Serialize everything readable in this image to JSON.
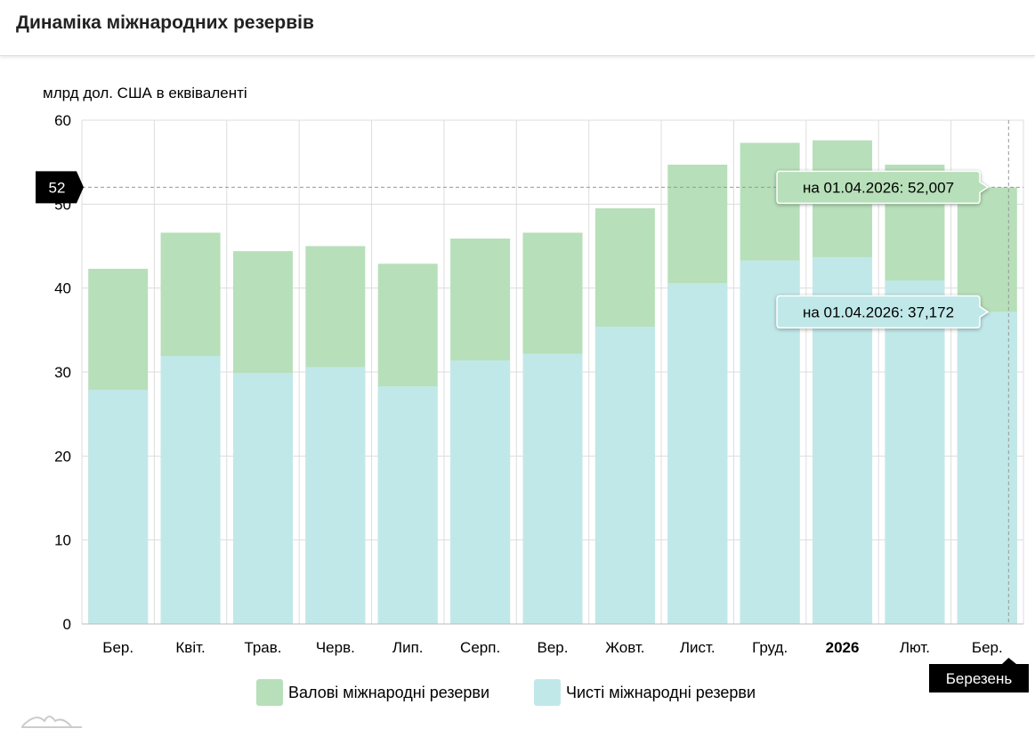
{
  "header": {
    "title": "Динаміка міжнародних резервів"
  },
  "chart_data": {
    "type": "bar",
    "ylabel": "млрд дол. США в еквіваленті",
    "ylim": [
      0,
      60
    ],
    "yticks": [
      0,
      10,
      20,
      30,
      40,
      50,
      60
    ],
    "grid": true,
    "categories": [
      "Бер.",
      "Квіт.",
      "Трав.",
      "Черв.",
      "Лип.",
      "Серп.",
      "Вер.",
      "Жовт.",
      "Лист.",
      "Груд.",
      "2026",
      "Лют.",
      "Бер."
    ],
    "bold_categories": [
      "2026"
    ],
    "series": [
      {
        "name": "Валові міжнародні резерви",
        "color": "#b7dfb9",
        "values": [
          42.3,
          46.6,
          44.4,
          45.0,
          42.9,
          45.9,
          46.6,
          49.5,
          54.7,
          57.3,
          57.6,
          54.7,
          52.007
        ]
      },
      {
        "name": "Чисті міжнародні резерви",
        "color": "#c1e8e9",
        "values": [
          27.9,
          31.9,
          29.9,
          30.6,
          28.3,
          31.4,
          32.2,
          35.4,
          40.6,
          43.3,
          43.7,
          40.9,
          37.172
        ]
      }
    ],
    "legend": "bottom",
    "crosshair": {
      "category_label": "Березень",
      "y_label": "52"
    },
    "tooltips": [
      {
        "text": "на 01.04.2026: 52,007",
        "color": "#b7dfb9"
      },
      {
        "text": "на 01.04.2026: 37,172",
        "color": "#c1e8e9"
      }
    ]
  }
}
